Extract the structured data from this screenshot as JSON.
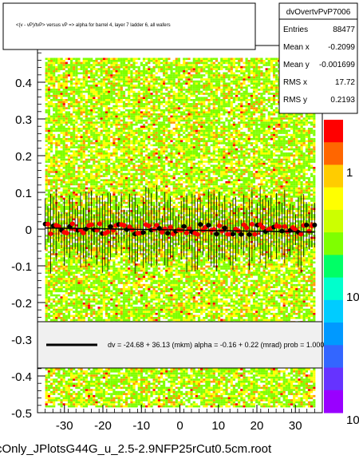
{
  "chart_data": {
    "type": "heatmap",
    "title": "<(v - vP)/tvP> versus   vP => alpha for barrel 4, layer 7 ladder 6, all wafers",
    "xlabel": "",
    "ylabel": "",
    "xlim": [
      -37,
      37
    ],
    "ylim": [
      -0.5,
      0.5
    ],
    "x_ticks": [
      -30,
      -20,
      -10,
      0,
      10,
      20,
      30
    ],
    "y_ticks": [
      -0.5,
      -0.4,
      -0.3,
      -0.2,
      -0.1,
      0,
      0.1,
      0.2,
      0.3,
      0.4
    ],
    "x_tick_labels": [
      "-30",
      "-20",
      "-10",
      "0",
      "10",
      "20",
      "30"
    ],
    "y_tick_labels": [
      "-0.5",
      "-0.4",
      "-0.3",
      "-0.2",
      "-0.1",
      "0",
      "0.1",
      "0.2",
      "0.3",
      "0.4"
    ],
    "colorbar_tick_labels": [
      "0",
      "1",
      "10",
      "10"
    ],
    "stats": {
      "name": "dvOvertvPvP7006",
      "rows": [
        {
          "label": "Entries",
          "value": "88477"
        },
        {
          "label": "Mean x",
          "value": "-0.2099"
        },
        {
          "label": "Mean y",
          "value": "-0.001699"
        },
        {
          "label": "RMS x",
          "value": "17.72"
        },
        {
          "label": "RMS y",
          "value": "0.2193"
        }
      ]
    },
    "fit_legend": "dv =  -24.68 +  36.13 (mkm) alpha =   -0.16 +  0.22 (mrad) prob = 1.000",
    "profile": {
      "x_start": -35,
      "x_end": 35,
      "n_points": 100,
      "mean": 0.0,
      "spread": 0.015
    },
    "fit_line": {
      "intercept": -0.0025,
      "slope": -0.00016
    },
    "colors": {
      "green": "#7fff00",
      "yellow": "#ffff00",
      "orange": "#ff9900",
      "red": "#ff0000",
      "black": "#000000"
    }
  },
  "footer": {
    "filename": "cOnly_JPlotsG44G_u_2.5-2.9NFP25rCut0.5cm.root"
  }
}
